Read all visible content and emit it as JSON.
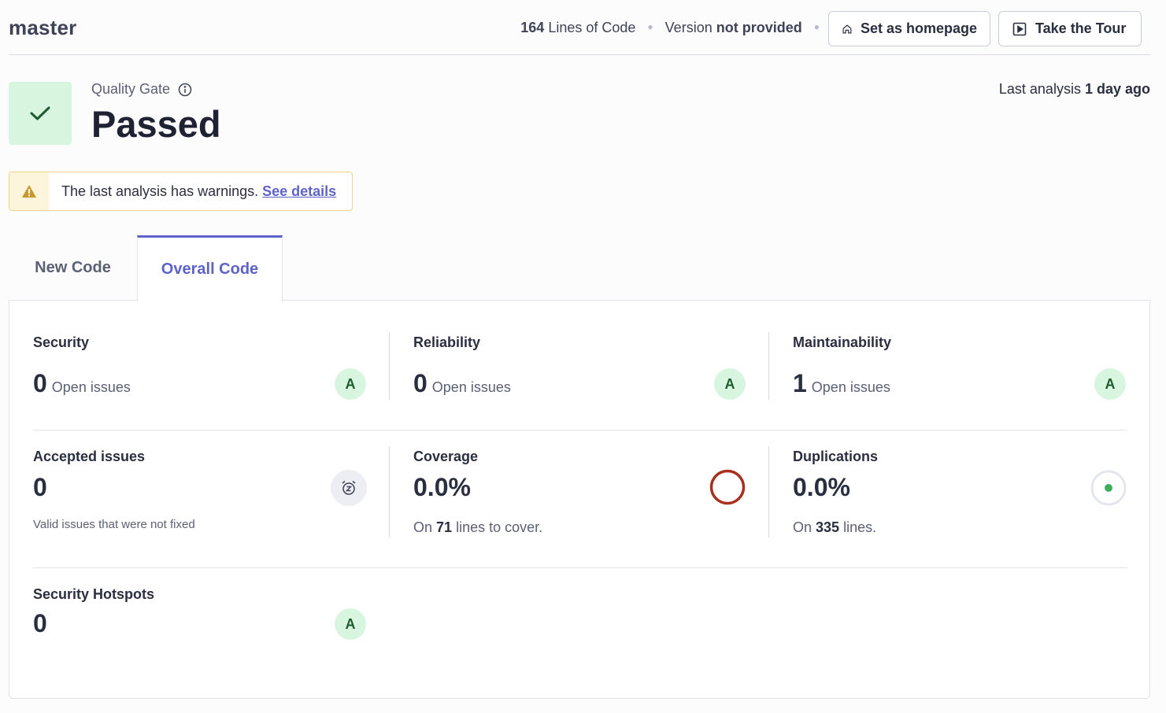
{
  "header": {
    "branch": "master",
    "lines_of_code_count": "164",
    "lines_of_code_label": "Lines of Code",
    "version_label": "Version",
    "version_value": "not provided",
    "set_homepage_label": "Set as homepage",
    "take_tour_label": "Take the Tour"
  },
  "quality_gate": {
    "label": "Quality Gate",
    "status": "Passed",
    "status_color": "#d8f5df",
    "last_analysis_label": "Last analysis",
    "last_analysis_value": "1 day ago"
  },
  "warning": {
    "text": "The last analysis has warnings.",
    "link": "See details"
  },
  "tabs": [
    {
      "label": "New Code",
      "active": false
    },
    {
      "label": "Overall Code",
      "active": true
    }
  ],
  "metrics": {
    "security": {
      "title": "Security",
      "value": "0",
      "unit": "Open issues",
      "grade": "A"
    },
    "reliability": {
      "title": "Reliability",
      "value": "0",
      "unit": "Open issues",
      "grade": "A"
    },
    "maintainability": {
      "title": "Maintainability",
      "value": "1",
      "unit": "Open issues",
      "grade": "A"
    },
    "accepted": {
      "title": "Accepted issues",
      "value": "0",
      "note": "Valid issues that were not fixed"
    },
    "coverage": {
      "title": "Coverage",
      "value": "0.0%",
      "sub_prefix": "On",
      "sub_count": "71",
      "sub_suffix": "lines to cover."
    },
    "duplications": {
      "title": "Duplications",
      "value": "0.0%",
      "sub_prefix": "On",
      "sub_count": "335",
      "sub_suffix": "lines."
    },
    "hotspots": {
      "title": "Security Hotspots",
      "value": "0",
      "grade": "A"
    }
  },
  "colors": {
    "accent": "#5e63c9",
    "grade_a_bg": "#d8f5df",
    "coverage_ring": "#a8301f",
    "duplication_dot": "#3fae5c"
  }
}
